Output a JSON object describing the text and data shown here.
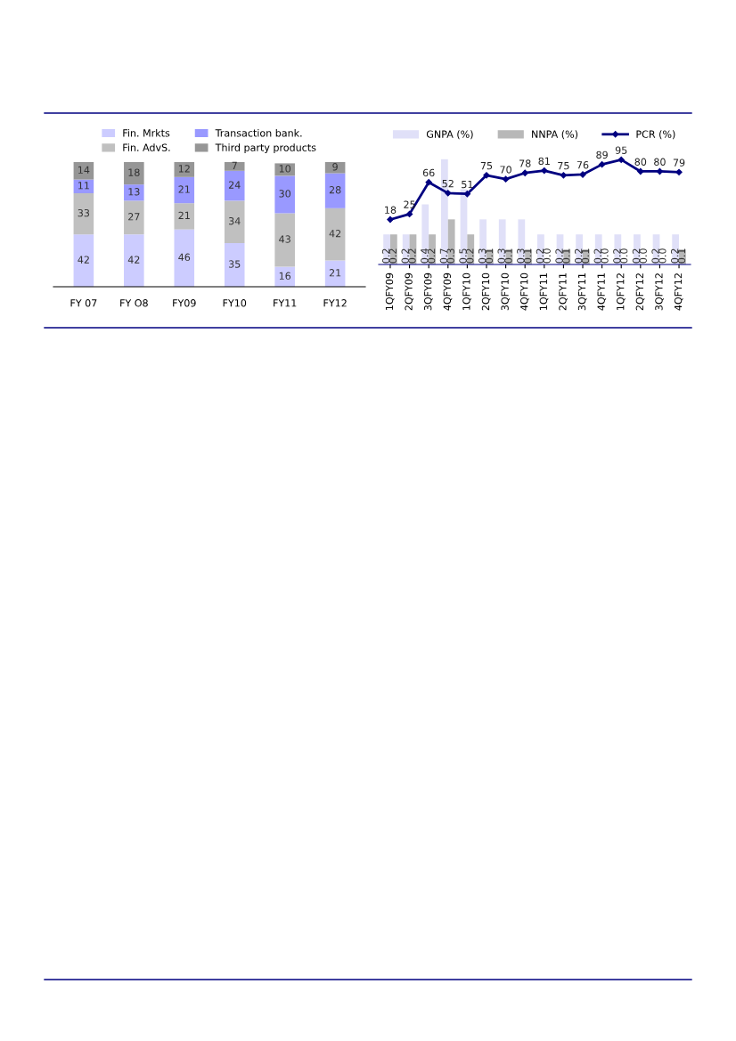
{
  "chart_data": [
    {
      "type": "bar",
      "stacked": true,
      "data_labels": true,
      "legend": "top",
      "categories": [
        "FY 07",
        "FY O8",
        "FY09",
        "FY10",
        "FY11",
        "FY12"
      ],
      "series": [
        {
          "name": "Fin. Mrkts",
          "color": "#ccccff",
          "values": [
            42,
            42,
            46,
            35,
            16,
            21
          ]
        },
        {
          "name": "Fin. AdvS.",
          "color": "#c0c0c0",
          "values": [
            33,
            27,
            21,
            34,
            43,
            42
          ]
        },
        {
          "name": "Transaction bank.",
          "color": "#9999ff",
          "values": [
            11,
            13,
            21,
            24,
            30,
            28
          ]
        },
        {
          "name": "Third party products",
          "color": "#969696",
          "values": [
            14,
            18,
            12,
            7,
            10,
            9
          ]
        }
      ]
    },
    {
      "type": "bar",
      "data_labels": true,
      "legend": "top",
      "marker": "diamond",
      "categories": [
        "1QFY09",
        "2QFY09",
        "3QFY09",
        "4QFY09",
        "1QFY10",
        "2QFY10",
        "3QFY10",
        "4QFY10",
        "1QFY11",
        "2QFY11",
        "3QFY11",
        "4QFY11",
        "1QFY12",
        "2QFY12",
        "3QFY12",
        "4QFY12"
      ],
      "series": [
        {
          "name": "GNPA (%)",
          "type": "bar",
          "color": "#e0e0f8",
          "values": [
            0.2,
            0.2,
            0.4,
            0.7,
            0.5,
            0.3,
            0.3,
            0.3,
            0.2,
            0.2,
            0.2,
            0.2,
            0.2,
            0.2,
            0.2,
            0.2
          ]
        },
        {
          "name": "NNPA (%)",
          "type": "bar",
          "color": "#b8b8b8",
          "values": [
            0.2,
            0.2,
            0.2,
            0.3,
            0.2,
            0.1,
            0.1,
            0.1,
            0,
            0.1,
            0.1,
            0,
            0,
            0,
            0,
            0.1
          ],
          "value_labels": [
            "0.2",
            "0.2",
            "0.2",
            "0.3",
            "0.2",
            "0.1",
            "0.1",
            "0.1",
            "0.0",
            "0.1",
            "0.1",
            "0.0",
            "0.0",
            "0.0",
            "0.0",
            "0.1"
          ]
        },
        {
          "name": "PCR (%)",
          "type": "line",
          "axis": "y2",
          "color": "#000080",
          "values": [
            18,
            25,
            66,
            52,
            51,
            75,
            70,
            78,
            81,
            75,
            76,
            89,
            95,
            80,
            80,
            79
          ]
        }
      ]
    }
  ]
}
